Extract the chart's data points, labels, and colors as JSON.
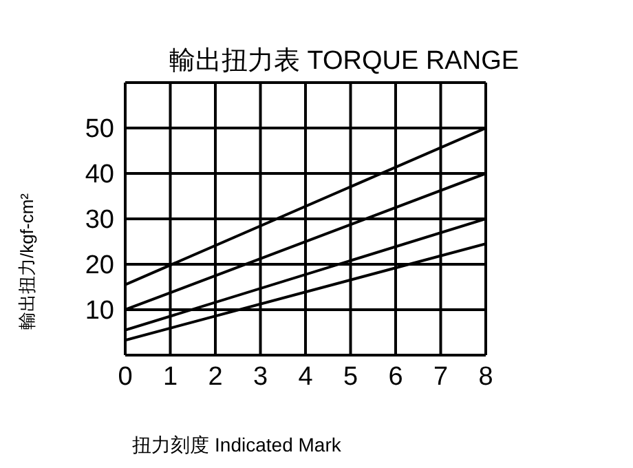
{
  "chart_data": {
    "type": "line",
    "title": "輸出扭力表  TORQUE RANGE",
    "xlabel": "扭力刻度  Indicated Mark",
    "ylabel": "輸出扭力/kgf-cm²",
    "x": [
      0,
      8
    ],
    "series": [
      {
        "color": "#000000",
        "values": [
          15.5,
          50
        ]
      },
      {
        "color": "#000000",
        "values": [
          10,
          40
        ]
      },
      {
        "color": "#000000",
        "values": [
          5.5,
          30
        ]
      },
      {
        "color": "#000000",
        "values": [
          3.3,
          24.5
        ]
      }
    ],
    "xlim": [
      0,
      8
    ],
    "xticks": [
      0,
      1,
      2,
      3,
      4,
      5,
      6,
      7,
      8
    ],
    "ylim": [
      0,
      60
    ],
    "yticks": [
      10,
      20,
      30,
      40,
      50
    ],
    "grid": true,
    "legend": false,
    "marker": "none",
    "line_style": "solid"
  }
}
